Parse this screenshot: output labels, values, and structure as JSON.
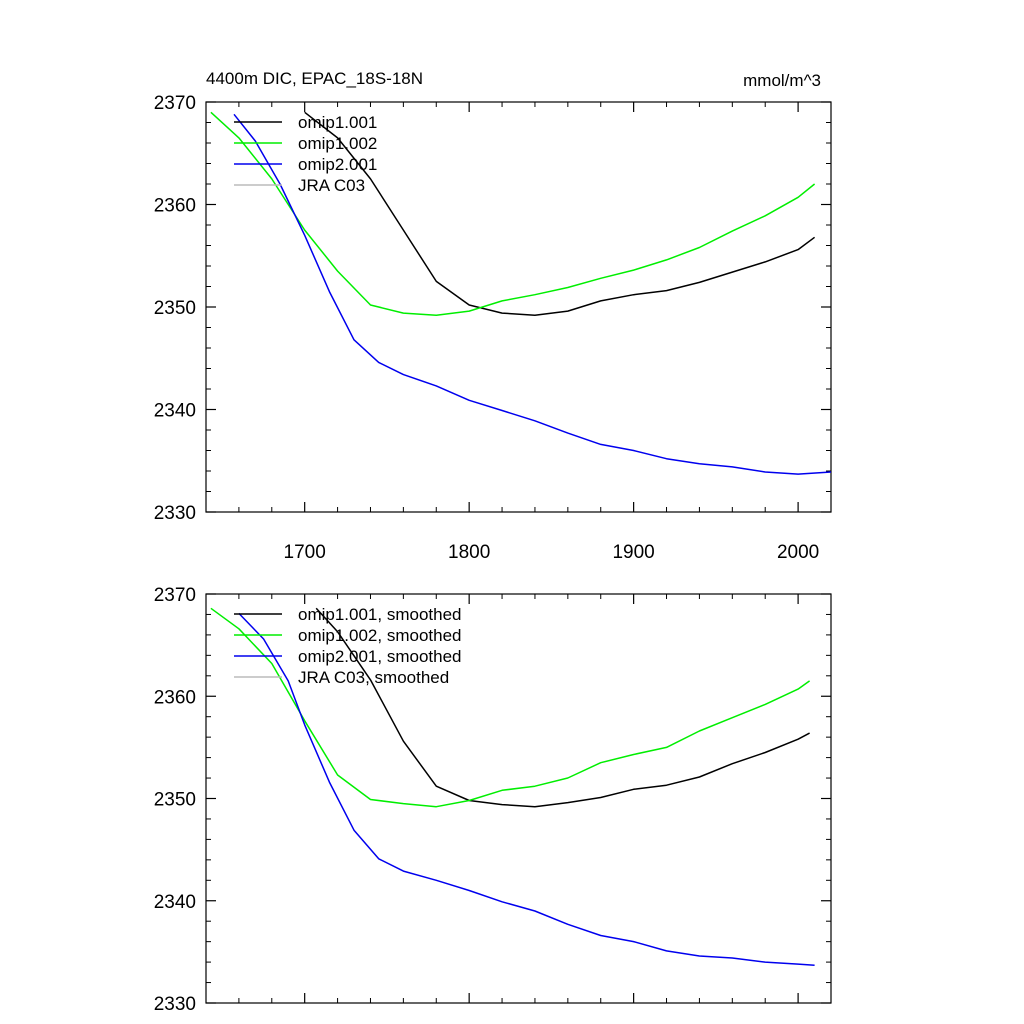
{
  "chart_data": [
    {
      "type": "line",
      "title": "4400m DIC, EPAC_18S-18N",
      "units_label": "mmol/m^3",
      "xlim": [
        1640,
        2020
      ],
      "ylim": [
        2330,
        2370
      ],
      "x_ticks": [
        1700,
        1800,
        1900,
        2000
      ],
      "x_tick_labels": [
        "1700",
        "1800",
        "1900",
        "2000"
      ],
      "y_ticks": [
        2330,
        2340,
        2350,
        2360,
        2370
      ],
      "y_tick_labels": [
        "2330",
        "2340",
        "2350",
        "2360",
        "2370"
      ],
      "grid": false,
      "legend_position": "top-left",
      "series": [
        {
          "name": "omip1.001",
          "color": "#000000",
          "x": [
            1700,
            1720,
            1740,
            1760,
            1780,
            1800,
            1820,
            1840,
            1860,
            1880,
            1900,
            1920,
            1940,
            1960,
            1980,
            2000,
            2010
          ],
          "y": [
            2369,
            2366.5,
            2362.5,
            2357.5,
            2352.5,
            2350.2,
            2349.4,
            2349.2,
            2349.6,
            2350.6,
            2351.2,
            2351.6,
            2352.4,
            2353.4,
            2354.4,
            2355.6,
            2356.8
          ]
        },
        {
          "name": "omip1.002",
          "color": "#00ee00",
          "x": [
            1643,
            1660,
            1680,
            1700,
            1720,
            1740,
            1760,
            1780,
            1800,
            1820,
            1840,
            1860,
            1880,
            1900,
            1920,
            1940,
            1960,
            1980,
            2000,
            2010
          ],
          "y": [
            2369,
            2366.5,
            2362.5,
            2357.5,
            2353.5,
            2350.2,
            2349.4,
            2349.2,
            2349.6,
            2350.6,
            2351.2,
            2351.9,
            2352.8,
            2353.6,
            2354.6,
            2355.8,
            2357.4,
            2358.9,
            2360.7,
            2362
          ]
        },
        {
          "name": "omip2.001",
          "color": "#0000ee",
          "x": [
            1657,
            1670,
            1685,
            1700,
            1715,
            1730,
            1745,
            1760,
            1780,
            1800,
            1820,
            1840,
            1860,
            1880,
            1900,
            1920,
            1940,
            1960,
            1980,
            2000,
            2020
          ],
          "y": [
            2368.8,
            2366.2,
            2362,
            2357,
            2351.5,
            2346.8,
            2344.6,
            2343.4,
            2342.3,
            2340.9,
            2339.9,
            2338.9,
            2337.7,
            2336.6,
            2336,
            2335.2,
            2334.7,
            2334.4,
            2333.9,
            2333.7,
            2333.9
          ]
        },
        {
          "name": "JRA C03",
          "color": "#bbbbbb",
          "x": [],
          "y": []
        }
      ]
    },
    {
      "type": "line",
      "xlim": [
        1640,
        2020
      ],
      "ylim": [
        2330,
        2370
      ],
      "x_ticks": [
        1700,
        1800,
        1900,
        2000
      ],
      "y_ticks": [
        2330,
        2340,
        2350,
        2360,
        2370
      ],
      "y_tick_labels": [
        "2330",
        "2340",
        "2350",
        "2360",
        "2370"
      ],
      "grid": false,
      "legend_position": "top-left",
      "series": [
        {
          "name": "omip1.001, smoothed",
          "color": "#000000",
          "x": [
            1707,
            1720,
            1740,
            1760,
            1780,
            1800,
            1820,
            1840,
            1860,
            1880,
            1900,
            1920,
            1940,
            1960,
            1980,
            2000,
            2007
          ],
          "y": [
            2368.6,
            2366.3,
            2361.6,
            2355.6,
            2351.2,
            2349.8,
            2349.4,
            2349.2,
            2349.6,
            2350.1,
            2350.9,
            2351.3,
            2352.1,
            2353.4,
            2354.5,
            2355.8,
            2356.4
          ]
        },
        {
          "name": "omip1.002, smoothed",
          "color": "#00ee00",
          "x": [
            1643,
            1660,
            1680,
            1700,
            1720,
            1740,
            1760,
            1780,
            1800,
            1820,
            1840,
            1860,
            1880,
            1900,
            1920,
            1940,
            1960,
            1980,
            2000,
            2007
          ],
          "y": [
            2368.6,
            2366.6,
            2363.2,
            2357.6,
            2352.3,
            2349.9,
            2349.5,
            2349.2,
            2349.8,
            2350.8,
            2351.2,
            2352.0,
            2353.5,
            2354.3,
            2355.0,
            2356.6,
            2357.9,
            2359.2,
            2360.7,
            2361.5
          ]
        },
        {
          "name": "omip2.001, smoothed",
          "color": "#0000ee",
          "x": [
            1660,
            1675,
            1690,
            1700,
            1715,
            1730,
            1745,
            1760,
            1780,
            1800,
            1820,
            1840,
            1860,
            1880,
            1900,
            1920,
            1940,
            1960,
            1980,
            2000,
            2010
          ],
          "y": [
            2368.1,
            2365.6,
            2361.5,
            2357.2,
            2351.6,
            2346.9,
            2344.1,
            2342.9,
            2342.0,
            2341.0,
            2339.9,
            2339.0,
            2337.7,
            2336.6,
            2336.0,
            2335.1,
            2334.6,
            2334.4,
            2334.0,
            2333.8,
            2333.7
          ]
        },
        {
          "name": "JRA C03, smoothed",
          "color": "#bbbbbb",
          "x": [],
          "y": []
        }
      ]
    }
  ]
}
